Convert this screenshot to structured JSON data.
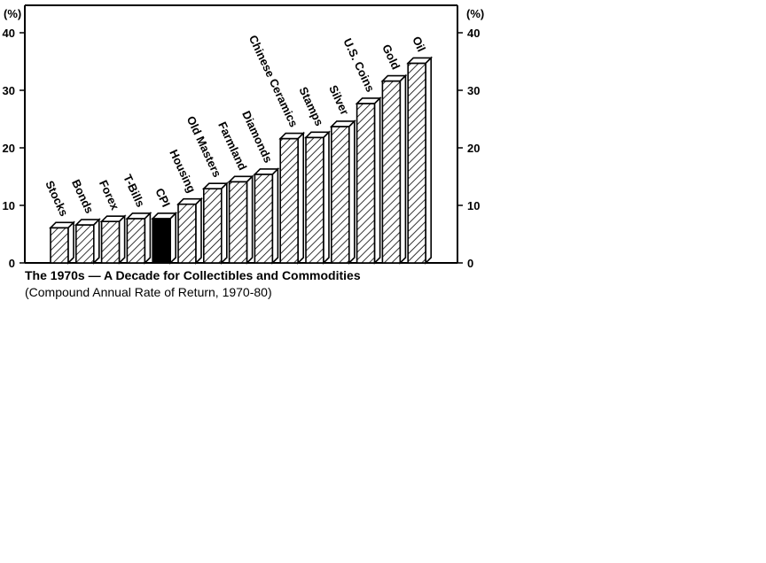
{
  "chart_data": {
    "type": "bar",
    "title": "The 1970s — A Decade for Collectibles and Commodities",
    "subtitle": "(Compound Annual Rate of Return, 1970-80)",
    "ylabel": "(%)",
    "ylabel_right": "(%)",
    "ylim": [
      0,
      40
    ],
    "yticks": [
      0,
      10,
      20,
      30,
      40
    ],
    "grid": false,
    "categories": [
      "Stocks",
      "Bonds",
      "Forex",
      "T-Bills",
      "CPI",
      "Housing",
      "Old Masters",
      "Farmland",
      "Diamonds",
      "Chinese Ceramics",
      "Stamps",
      "Silver",
      "U.S. Coins",
      "Gold",
      "Oil"
    ],
    "values": [
      6.1,
      6.6,
      7.2,
      7.7,
      7.7,
      10.2,
      12.9,
      14.1,
      15.4,
      21.6,
      21.8,
      23.7,
      27.7,
      31.6,
      34.7
    ],
    "highlight_category": "CPI",
    "colors": {
      "bar_fill": "#ffffff",
      "hatch": "#000000",
      "highlight": "#000000"
    }
  }
}
